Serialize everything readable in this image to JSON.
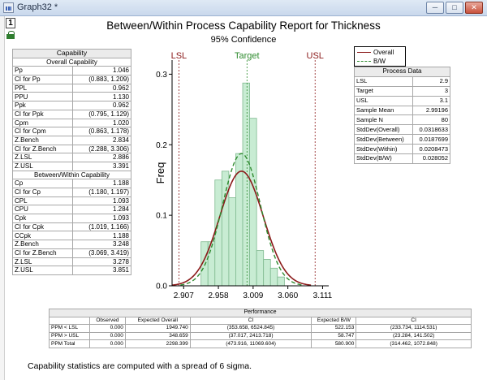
{
  "window": {
    "title": "Graph32 *",
    "buttons": [
      "minimize",
      "maximize",
      "close"
    ],
    "layer_number": "1"
  },
  "report": {
    "title": "Between/Within Process Capability Report for Thickness",
    "subtitle": "95% Confidence",
    "footnote": "Capability statistics are computed with a spread of 6 sigma."
  },
  "capability": {
    "title": "Capability",
    "overall_heading": "Overall Capability",
    "overall": [
      {
        "label": "Pp",
        "value": "1.046"
      },
      {
        "label": "CI for Pp",
        "value": "(0.883, 1.209)"
      },
      {
        "label": "PPL",
        "value": "0.962"
      },
      {
        "label": "PPU",
        "value": "1.130"
      },
      {
        "label": "Ppk",
        "value": "0.962"
      },
      {
        "label": "CI for Ppk",
        "value": "(0.795, 1.129)"
      },
      {
        "label": "Cpm",
        "value": "1.020"
      },
      {
        "label": "CI for Cpm",
        "value": "(0.863, 1.178)"
      },
      {
        "label": "Z.Bench",
        "value": "2.834"
      },
      {
        "label": "CI for Z.Bench",
        "value": "(2.288, 3.306)"
      },
      {
        "label": "Z.LSL",
        "value": "2.886"
      },
      {
        "label": "Z.USL",
        "value": "3.391"
      }
    ],
    "bw_heading": "Between/Within Capability",
    "between_within": [
      {
        "label": "Cp",
        "value": "1.188"
      },
      {
        "label": "CI for Cp",
        "value": "(1.180, 1.197)"
      },
      {
        "label": "CPL",
        "value": "1.093"
      },
      {
        "label": "CPU",
        "value": "1.284"
      },
      {
        "label": "Cpk",
        "value": "1.093"
      },
      {
        "label": "CI for Cpk",
        "value": "(1.019, 1.166)"
      },
      {
        "label": "CCpk",
        "value": "1.188"
      },
      {
        "label": "Z.Bench",
        "value": "3.248"
      },
      {
        "label": "CI for Z.Bench",
        "value": "(3.069, 3.419)"
      },
      {
        "label": "Z.LSL",
        "value": "3.278"
      },
      {
        "label": "Z.USL",
        "value": "3.851"
      }
    ]
  },
  "process_data": {
    "title": "Process Data",
    "rows": [
      {
        "label": "LSL",
        "value": "2.9"
      },
      {
        "label": "Target",
        "value": "3"
      },
      {
        "label": "USL",
        "value": "3.1"
      },
      {
        "label": "Sample Mean",
        "value": "2.99196"
      },
      {
        "label": "Sample N",
        "value": "80"
      },
      {
        "label": "StdDev(Overall)",
        "value": "0.0318633"
      },
      {
        "label": "StdDev(Between)",
        "value": "0.0187699"
      },
      {
        "label": "StdDev(Within)",
        "value": "0.0208473"
      },
      {
        "label": "StdDev(B/W)",
        "value": "0.028052"
      }
    ]
  },
  "performance": {
    "title": "Performance",
    "columns": [
      "",
      "Observed",
      "Expected Overall",
      "CI",
      "Expected B/W",
      "CI"
    ],
    "rows": [
      {
        "label": "PPM < LSL",
        "observed": "0.000",
        "expected_overall": "1949.740",
        "ci_overall": "(353.658, 6524.845)",
        "expected_bw": "522.153",
        "ci_bw": "(233.734, 1114.531)"
      },
      {
        "label": "PPM > USL",
        "observed": "0.000",
        "expected_overall": "348.659",
        "ci_overall": "(37.017, 2413.718)",
        "expected_bw": "58.747",
        "ci_bw": "(23.284, 141.502)"
      },
      {
        "label": "PPM Total",
        "observed": "0.000",
        "expected_overall": "2298.399",
        "ci_overall": "(473.916, 11069.604)",
        "expected_bw": "580.900",
        "ci_bw": "(314.462, 1072.848)"
      }
    ]
  },
  "legend": {
    "items": [
      {
        "name": "Overall",
        "color": "#8b1a1a",
        "style": "solid"
      },
      {
        "name": "B/W",
        "color": "#2e8b2e",
        "style": "dashed"
      }
    ]
  },
  "chart_data": {
    "type": "bar",
    "ylabel": "Freq",
    "xlabel": "",
    "xlim": [
      2.89,
      3.12
    ],
    "ylim": [
      0,
      0.32
    ],
    "xticks": [
      "2.907",
      "2.958",
      "3.009",
      "3.060",
      "3.111"
    ],
    "xtick_values": [
      2.907,
      2.958,
      3.009,
      3.06,
      3.111
    ],
    "yticks": [
      "0.0",
      "0.1",
      "0.2",
      "0.3"
    ],
    "ytick_values": [
      0,
      0.1,
      0.2,
      0.3
    ],
    "bins": [
      {
        "start": 2.9325,
        "end": 2.9427,
        "value": 0.0625
      },
      {
        "start": 2.9427,
        "end": 2.9529,
        "value": 0.0625
      },
      {
        "start": 2.9529,
        "end": 2.9631,
        "value": 0.15
      },
      {
        "start": 2.9631,
        "end": 2.9733,
        "value": 0.1625
      },
      {
        "start": 2.9733,
        "end": 2.9835,
        "value": 0.125
      },
      {
        "start": 2.9835,
        "end": 2.9937,
        "value": 0.1875
      },
      {
        "start": 2.9937,
        "end": 3.0039,
        "value": 0.2875
      },
      {
        "start": 3.0039,
        "end": 3.0141,
        "value": 0.2375
      },
      {
        "start": 3.0141,
        "end": 3.0243,
        "value": 0.05
      },
      {
        "start": 3.0243,
        "end": 3.0345,
        "value": 0.0375
      },
      {
        "start": 3.0345,
        "end": 3.0447,
        "value": 0.025
      },
      {
        "start": 3.0447,
        "end": 3.0549,
        "value": 0.0125
      }
    ],
    "reference_lines": [
      {
        "label": "LSL",
        "value": 2.9,
        "color": "#8b1a1a"
      },
      {
        "label": "Target",
        "value": 3.0,
        "color": "#2e8b2e"
      },
      {
        "label": "USL",
        "value": 3.1,
        "color": "#8b1a1a"
      }
    ],
    "curves": [
      {
        "name": "Overall",
        "mean": 2.99196,
        "sd": 0.0318633,
        "peak": 0.1625,
        "color": "#8b1a1a",
        "style": "solid"
      },
      {
        "name": "B/W",
        "mean": 2.99196,
        "sd": 0.028052,
        "peak": 0.1875,
        "color": "#2e8b2e",
        "style": "dashed"
      }
    ],
    "bar_color": "#c8ecd3",
    "bar_edge": "#7fb98f",
    "grid": false
  }
}
